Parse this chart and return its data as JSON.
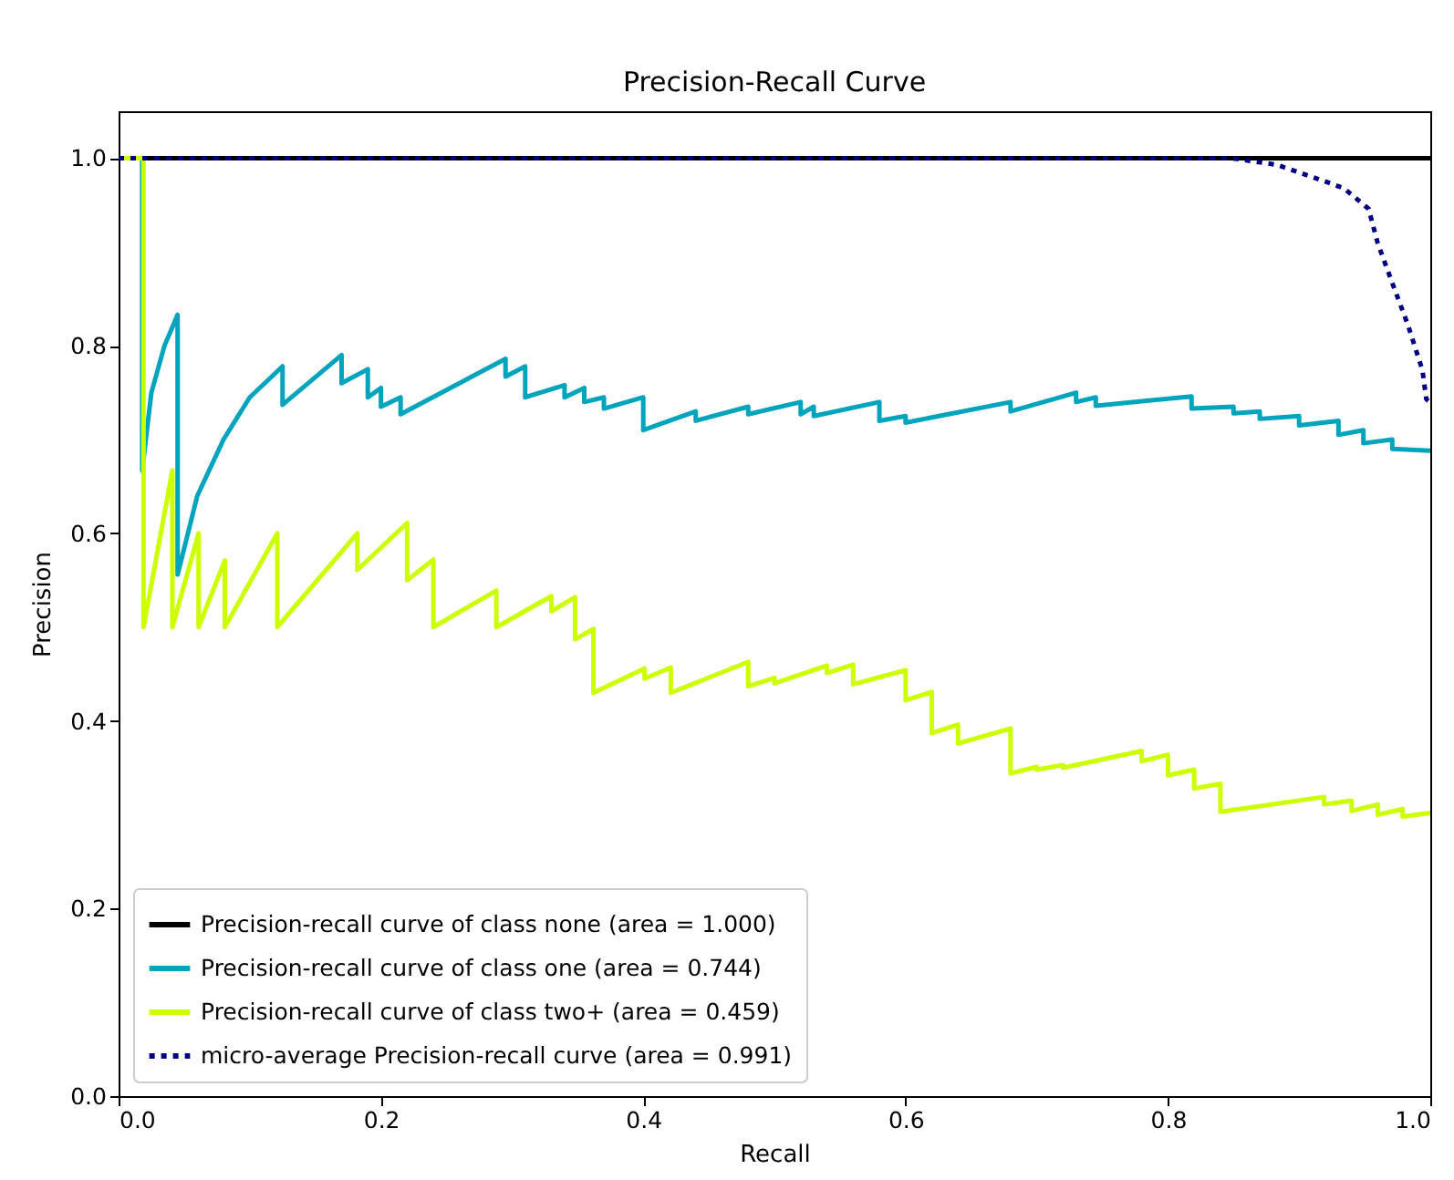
{
  "chart_data": {
    "type": "line",
    "title": "Precision-Recall Curve",
    "xlabel": "Recall",
    "ylabel": "Precision",
    "xlim": [
      0,
      1
    ],
    "ylim": [
      0,
      1.05
    ],
    "xticks": [
      {
        "value": 0,
        "label": "0.0"
      },
      0.2,
      0.4,
      0.6,
      0.8,
      {
        "value": 1,
        "label": "1.0"
      }
    ],
    "yticks": [
      {
        "value": 0,
        "label": "0.0"
      },
      0.2,
      0.4,
      0.6,
      0.8,
      {
        "value": 1,
        "label": "1.0"
      }
    ],
    "legend": "bottom left",
    "grid": false,
    "marker": "none",
    "series": [
      {
        "name": "Precision-recall curve of class none (area = 1.000)",
        "color": "#000000",
        "line_style": "solid",
        "x": [
          0,
          1
        ],
        "values": [
          1,
          1
        ]
      },
      {
        "name": "Precision-recall curve of class one (area = 0.744)",
        "color": "#00a5bd",
        "line_style": "solid",
        "x": [
          0,
          0.018,
          0.018,
          0.025,
          0.035,
          0.045,
          0.045,
          0.06,
          0.08,
          0.1,
          0.125,
          0.125,
          0.17,
          0.17,
          0.19,
          0.19,
          0.2,
          0.2,
          0.215,
          0.215,
          0.295,
          0.295,
          0.31,
          0.31,
          0.34,
          0.34,
          0.355,
          0.355,
          0.37,
          0.37,
          0.4,
          0.4,
          0.44,
          0.44,
          0.48,
          0.48,
          0.52,
          0.52,
          0.53,
          0.53,
          0.58,
          0.58,
          0.6,
          0.6,
          0.68,
          0.68,
          0.73,
          0.73,
          0.745,
          0.745,
          0.818,
          0.818,
          0.85,
          0.85,
          0.87,
          0.87,
          0.9,
          0.9,
          0.93,
          0.93,
          0.949,
          0.949,
          0.971,
          0.971,
          1
        ],
        "values": [
          1,
          1,
          0.667,
          0.75,
          0.8,
          0.833,
          0.556,
          0.64,
          0.7,
          0.745,
          0.778,
          0.737,
          0.79,
          0.76,
          0.775,
          0.745,
          0.755,
          0.735,
          0.745,
          0.727,
          0.786,
          0.767,
          0.778,
          0.745,
          0.758,
          0.745,
          0.755,
          0.74,
          0.745,
          0.733,
          0.745,
          0.71,
          0.73,
          0.72,
          0.735,
          0.727,
          0.74,
          0.727,
          0.735,
          0.725,
          0.74,
          0.72,
          0.725,
          0.718,
          0.74,
          0.73,
          0.75,
          0.74,
          0.745,
          0.736,
          0.746,
          0.733,
          0.735,
          0.728,
          0.73,
          0.722,
          0.725,
          0.715,
          0.72,
          0.705,
          0.71,
          0.696,
          0.7,
          0.69,
          0.688
        ]
      },
      {
        "name": "Precision-recall curve of class two+ (area = 0.459)",
        "color": "#ccff00",
        "line_style": "solid",
        "x": [
          0,
          0.019,
          0.019,
          0.041,
          0.041,
          0.061,
          0.061,
          0.081,
          0.081,
          0.121,
          0.121,
          0.182,
          0.182,
          0.22,
          0.22,
          0.24,
          0.24,
          0.288,
          0.288,
          0.33,
          0.33,
          0.348,
          0.348,
          0.362,
          0.362,
          0.401,
          0.401,
          0.421,
          0.421,
          0.48,
          0.48,
          0.5,
          0.5,
          0.54,
          0.54,
          0.56,
          0.56,
          0.6,
          0.6,
          0.62,
          0.62,
          0.64,
          0.64,
          0.68,
          0.68,
          0.7,
          0.7,
          0.72,
          0.72,
          0.78,
          0.78,
          0.8,
          0.8,
          0.82,
          0.82,
          0.84,
          0.84,
          0.919,
          0.919,
          0.94,
          0.94,
          0.96,
          0.96,
          0.979,
          0.979,
          1
        ],
        "values": [
          1,
          1,
          0.5,
          0.667,
          0.5,
          0.6,
          0.5,
          0.571,
          0.5,
          0.6,
          0.5,
          0.6,
          0.561,
          0.611,
          0.55,
          0.572,
          0.5,
          0.539,
          0.5,
          0.533,
          0.517,
          0.532,
          0.487,
          0.498,
          0.43,
          0.456,
          0.445,
          0.457,
          0.43,
          0.463,
          0.437,
          0.446,
          0.44,
          0.459,
          0.451,
          0.46,
          0.439,
          0.454,
          0.422,
          0.431,
          0.387,
          0.396,
          0.376,
          0.392,
          0.344,
          0.351,
          0.348,
          0.353,
          0.35,
          0.368,
          0.357,
          0.364,
          0.342,
          0.348,
          0.328,
          0.333,
          0.303,
          0.319,
          0.311,
          0.315,
          0.304,
          0.311,
          0.3,
          0.306,
          0.298,
          0.302
        ]
      },
      {
        "name": "micro-average Precision-recall curve (area = 0.991)",
        "color": "#000080",
        "line_style": "dotted",
        "x": [
          0,
          0.848,
          0.883,
          0.914,
          0.934,
          0.953,
          0.96,
          0.971,
          0.983,
          0.994,
          0.997,
          1
        ],
        "values": [
          1,
          1,
          0.993,
          0.978,
          0.968,
          0.946,
          0.909,
          0.867,
          0.822,
          0.774,
          0.743,
          0.74
        ]
      }
    ]
  }
}
